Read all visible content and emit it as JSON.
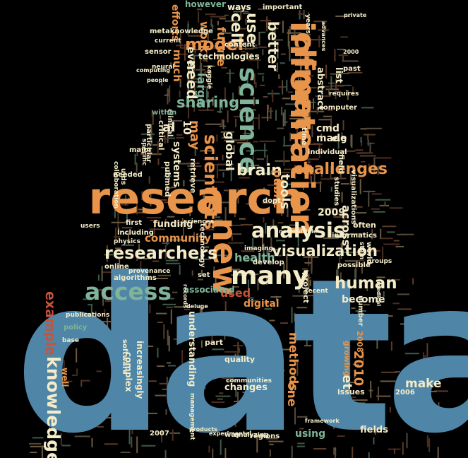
{
  "palette": {
    "background": "#000000",
    "blue": "#4f86a8",
    "orange": "#e8944a",
    "green": "#7fb49a",
    "cream": "#f4ecc8",
    "red": "#c8523a",
    "dim": "#6a5a40"
  },
  "words": [
    {
      "text": "data",
      "color": "blue"
    },
    {
      "text": "research",
      "color": "orange"
    },
    {
      "text": "information",
      "color": "orange"
    },
    {
      "text": "science",
      "color": "green"
    },
    {
      "text": "climate",
      "color": "orange"
    },
    {
      "text": "new",
      "color": "orange"
    },
    {
      "text": "many",
      "color": "cream"
    },
    {
      "text": "access",
      "color": "green"
    },
    {
      "text": "analysis",
      "color": "cream"
    },
    {
      "text": "researchers",
      "color": "cream"
    },
    {
      "text": "visualization",
      "color": "cream"
    },
    {
      "text": "knowledge",
      "color": "cream"
    },
    {
      "text": "example",
      "color": "red"
    },
    {
      "text": "scientists",
      "color": "orange"
    },
    {
      "text": "sharing",
      "color": "green"
    },
    {
      "text": "human",
      "color": "cream"
    },
    {
      "text": "challenges",
      "color": "orange"
    },
    {
      "text": "model",
      "color": "orange"
    },
    {
      "text": "brain",
      "color": "cream"
    },
    {
      "text": "use",
      "color": "cream"
    },
    {
      "text": "cell",
      "color": "cream"
    },
    {
      "text": "better",
      "color": "cream"
    },
    {
      "text": "methods",
      "color": "orange"
    },
    {
      "text": "one",
      "color": "orange"
    },
    {
      "text": "need",
      "color": "cream"
    },
    {
      "text": "health",
      "color": "green"
    },
    {
      "text": "community",
      "color": "orange"
    },
    {
      "text": "tools",
      "color": "cream"
    },
    {
      "text": "2010",
      "color": "orange"
    },
    {
      "text": "et",
      "color": "cream"
    },
    {
      "text": "large",
      "color": "green"
    },
    {
      "text": "may",
      "color": "orange"
    },
    {
      "text": "make",
      "color": "cream"
    },
    {
      "text": "global",
      "color": "cream"
    },
    {
      "text": "public",
      "color": "orange"
    },
    {
      "text": "across",
      "color": "cream"
    },
    {
      "text": "future",
      "color": "orange"
    },
    {
      "text": "work",
      "color": "orange"
    },
    {
      "text": "al",
      "color": "cream"
    },
    {
      "text": "systems",
      "color": "cream"
    },
    {
      "text": "funding",
      "color": "cream"
    },
    {
      "text": "used",
      "color": "red"
    },
    {
      "text": "digital",
      "color": "orange"
    },
    {
      "text": "understanding",
      "color": "cream"
    },
    {
      "text": "associated",
      "color": "green"
    },
    {
      "text": "become",
      "color": "cream"
    },
    {
      "text": "using",
      "color": "green"
    },
    {
      "text": "changes",
      "color": "cream"
    },
    {
      "text": "2009",
      "color": "cream"
    },
    {
      "text": "made",
      "color": "cream"
    },
    {
      "text": "cmd",
      "color": "cream"
    },
    {
      "text": "abstract",
      "color": "cream"
    },
    {
      "text": "technologies",
      "color": "cream"
    },
    {
      "text": "increasingly",
      "color": "cream"
    },
    {
      "text": "complex",
      "color": "cream"
    },
    {
      "text": "quality",
      "color": "cream"
    },
    {
      "text": "2008",
      "color": "orange"
    },
    {
      "text": "growing",
      "color": "orange"
    },
    {
      "text": "fields",
      "color": "cream"
    },
    {
      "text": "issues",
      "color": "cream"
    },
    {
      "text": "project",
      "color": "cream"
    },
    {
      "text": "efforts",
      "color": "orange"
    },
    {
      "text": "however",
      "color": "green"
    },
    {
      "text": "ways",
      "color": "cream"
    },
    {
      "text": "important",
      "color": "cream"
    },
    {
      "text": "content",
      "color": "cream"
    },
    {
      "text": "much",
      "color": "orange"
    },
    {
      "text": "even",
      "color": "cream"
    },
    {
      "text": "metaknowledge",
      "color": "cream"
    },
    {
      "text": "sensor",
      "color": "cream"
    },
    {
      "text": "10",
      "color": "cream"
    },
    {
      "text": "clinical",
      "color": "cream"
    },
    {
      "text": "retrieve",
      "color": "cream"
    },
    {
      "text": "pubmed",
      "color": "cream"
    },
    {
      "text": "within",
      "color": "green"
    },
    {
      "text": "critical",
      "color": "cream"
    },
    {
      "text": "particular",
      "color": "cream"
    },
    {
      "text": "major",
      "color": "cream"
    },
    {
      "text": "collaboration",
      "color": "cream"
    },
    {
      "text": "needed",
      "color": "cream"
    },
    {
      "text": "uids",
      "color": "cream"
    },
    {
      "text": "first",
      "color": "cream"
    },
    {
      "text": "including",
      "color": "cream"
    },
    {
      "text": "physics",
      "color": "cream"
    },
    {
      "text": "online",
      "color": "cream"
    },
    {
      "text": "provenance",
      "color": "cream"
    },
    {
      "text": "algorithms",
      "color": "cream"
    },
    {
      "text": "publications",
      "color": "cream"
    },
    {
      "text": "policy",
      "color": "green"
    },
    {
      "text": "well",
      "color": "orange"
    },
    {
      "text": "software",
      "color": "cream"
    },
    {
      "text": "part",
      "color": "cream"
    },
    {
      "text": "communities",
      "color": "cream"
    },
    {
      "text": "imaging",
      "color": "cream"
    },
    {
      "text": "develop",
      "color": "cream"
    },
    {
      "text": "possible",
      "color": "cream"
    },
    {
      "text": "often",
      "color": "cream"
    },
    {
      "text": "informatics",
      "color": "cream"
    },
    {
      "text": "world",
      "color": "cream"
    },
    {
      "text": "stem",
      "color": "cream"
    },
    {
      "text": "studies",
      "color": "cream"
    },
    {
      "text": "visualizations",
      "color": "cream"
    },
    {
      "text": "field",
      "color": "cream"
    },
    {
      "text": "individual",
      "color": "cream"
    },
    {
      "text": "list",
      "color": "cream"
    },
    {
      "text": "past",
      "color": "cream"
    },
    {
      "text": "computer",
      "color": "cream"
    },
    {
      "text": "requires",
      "color": "cream"
    },
    {
      "text": "time",
      "color": "cream"
    },
    {
      "text": "years",
      "color": "cream"
    },
    {
      "text": "e.g",
      "color": "cream"
    },
    {
      "text": "number",
      "color": "cream"
    },
    {
      "text": "2006",
      "color": "cream"
    },
    {
      "text": "framework",
      "color": "cream"
    },
    {
      "text": "2007",
      "color": "cream"
    },
    {
      "text": "regions",
      "color": "cream"
    },
    {
      "text": "analyzing",
      "color": "cream"
    },
    {
      "text": "way",
      "color": "cream"
    },
    {
      "text": "experimental",
      "color": "cream"
    },
    {
      "text": "technology",
      "color": "cream"
    },
    {
      "text": "records",
      "color": "cream"
    },
    {
      "text": "set",
      "color": "cream"
    },
    {
      "text": "kaggle",
      "color": "cream"
    },
    {
      "text": "neural",
      "color": "cream"
    },
    {
      "text": "current",
      "color": "cream"
    },
    {
      "text": "computing",
      "color": "cream"
    },
    {
      "text": "people",
      "color": "cream"
    },
    {
      "text": "specific",
      "color": "cream"
    },
    {
      "text": "sciences",
      "color": "cream"
    },
    {
      "text": "groups",
      "color": "cream"
    },
    {
      "text": "users",
      "color": "cream"
    },
    {
      "text": "multiple",
      "color": "cream"
    },
    {
      "text": "notes",
      "color": "cream"
    },
    {
      "text": "dopt",
      "color": "cream"
    },
    {
      "text": "recent",
      "color": "cream"
    },
    {
      "text": "medical",
      "color": "cream"
    },
    {
      "text": "deluge",
      "color": "cream"
    },
    {
      "text": "base",
      "color": "cream"
    },
    {
      "text": "2000",
      "color": "cream"
    },
    {
      "text": "advances",
      "color": "cream"
    },
    {
      "text": "private",
      "color": "cream"
    },
    {
      "text": "management",
      "color": "cream"
    },
    {
      "text": "products",
      "color": "cream"
    }
  ]
}
